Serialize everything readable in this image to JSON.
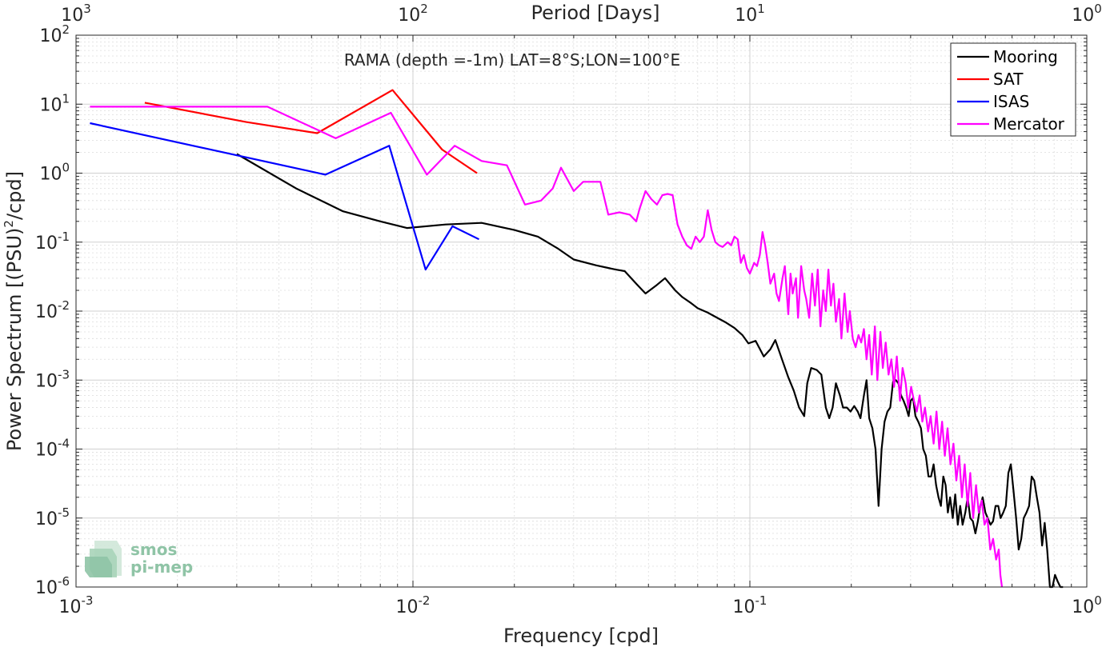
{
  "chart_data": {
    "type": "line",
    "title": "",
    "annotation": "RAMA (depth =-1m) LAT=8°S;LON=100°E",
    "xlabel": "Frequency [cpd]",
    "ylabel": "Power Spectrum [(PSU)",
    "ylabel_sup": "2",
    "ylabel_tail": "/cpd]",
    "top_xlabel": "Period [Days]",
    "xscale": "log",
    "yscale": "log",
    "xlim": [
      0.001,
      1
    ],
    "ylim": [
      1e-06,
      100
    ],
    "grid": true,
    "legend_position": "top-right",
    "x_ticks": [
      {
        "value": 0.001,
        "base": "10",
        "exp": "-3"
      },
      {
        "value": 0.01,
        "base": "10",
        "exp": "-2"
      },
      {
        "value": 0.1,
        "base": "10",
        "exp": "-1"
      },
      {
        "value": 1,
        "base": "10",
        "exp": "0"
      }
    ],
    "top_ticks": [
      {
        "value": 0.001,
        "base": "10",
        "exp": "3"
      },
      {
        "value": 0.01,
        "base": "10",
        "exp": "2"
      },
      {
        "value": 0.1,
        "base": "10",
        "exp": "1"
      },
      {
        "value": 1,
        "base": "10",
        "exp": "0"
      }
    ],
    "y_ticks": [
      {
        "value": 100,
        "base": "10",
        "exp": "2"
      },
      {
        "value": 10,
        "base": "10",
        "exp": "1"
      },
      {
        "value": 1,
        "base": "10",
        "exp": "0"
      },
      {
        "value": 0.1,
        "base": "10",
        "exp": "-1"
      },
      {
        "value": 0.01,
        "base": "10",
        "exp": "-2"
      },
      {
        "value": 0.001,
        "base": "10",
        "exp": "-3"
      },
      {
        "value": 0.0001,
        "base": "10",
        "exp": "-4"
      },
      {
        "value": 1e-05,
        "base": "10",
        "exp": "-5"
      },
      {
        "value": 1e-06,
        "base": "10",
        "exp": "-6"
      }
    ],
    "series": [
      {
        "name": "Mooring",
        "color": "#000000",
        "points": [
          [
            0.003,
            1.9
          ],
          [
            0.0045,
            0.6
          ],
          [
            0.0062,
            0.28
          ],
          [
            0.008,
            0.2
          ],
          [
            0.0096,
            0.16
          ],
          [
            0.0125,
            0.18
          ],
          [
            0.016,
            0.19
          ],
          [
            0.02,
            0.15
          ],
          [
            0.0235,
            0.12
          ],
          [
            0.027,
            0.08
          ],
          [
            0.03,
            0.056
          ],
          [
            0.035,
            0.046
          ],
          [
            0.04,
            0.04
          ],
          [
            0.0425,
            0.038
          ],
          [
            0.046,
            0.025
          ],
          [
            0.049,
            0.018
          ],
          [
            0.053,
            0.024
          ],
          [
            0.056,
            0.03
          ],
          [
            0.06,
            0.02
          ],
          [
            0.063,
            0.016
          ],
          [
            0.067,
            0.013
          ],
          [
            0.07,
            0.011
          ],
          [
            0.075,
            0.0095
          ],
          [
            0.08,
            0.008
          ],
          [
            0.085,
            0.0068
          ],
          [
            0.09,
            0.0057
          ],
          [
            0.095,
            0.0045
          ],
          [
            0.099,
            0.0034
          ],
          [
            0.104,
            0.0037
          ],
          [
            0.11,
            0.0022
          ],
          [
            0.115,
            0.0028
          ],
          [
            0.119,
            0.0038
          ],
          [
            0.125,
            0.0019
          ],
          [
            0.13,
            0.0011
          ],
          [
            0.135,
            0.0007
          ],
          [
            0.14,
            0.0004
          ],
          [
            0.145,
            0.0003
          ],
          [
            0.148,
            0.0009
          ],
          [
            0.152,
            0.0015
          ],
          [
            0.158,
            0.0014
          ],
          [
            0.163,
            0.0012
          ],
          [
            0.168,
            0.0004
          ],
          [
            0.172,
            0.00028
          ],
          [
            0.176,
            0.0004
          ],
          [
            0.18,
            0.0009
          ],
          [
            0.185,
            0.0006
          ],
          [
            0.189,
            0.0004
          ],
          [
            0.194,
            0.0004
          ],
          [
            0.199,
            0.00035
          ],
          [
            0.204,
            0.00042
          ],
          [
            0.209,
            0.00035
          ],
          [
            0.213,
            0.00028
          ],
          [
            0.218,
            0.0006
          ],
          [
            0.222,
            0.001
          ],
          [
            0.226,
            0.00028
          ],
          [
            0.231,
            0.0002
          ],
          [
            0.236,
            0.0001
          ],
          [
            0.241,
            1.5e-05
          ],
          [
            0.246,
            0.0001
          ],
          [
            0.251,
            0.00025
          ],
          [
            0.256,
            0.00035
          ],
          [
            0.261,
            0.0004
          ],
          [
            0.266,
            0.00095
          ],
          [
            0.271,
            0.001
          ],
          [
            0.276,
            0.0009
          ],
          [
            0.281,
            0.0006
          ],
          [
            0.286,
            0.0005
          ],
          [
            0.291,
            0.0004
          ],
          [
            0.296,
            0.0003
          ],
          [
            0.3,
            0.0005
          ],
          [
            0.305,
            0.00055
          ],
          [
            0.31,
            0.0003
          ],
          [
            0.316,
            0.00025
          ],
          [
            0.322,
            0.0002
          ],
          [
            0.327,
            0.0001
          ],
          [
            0.333,
            8e-05
          ],
          [
            0.339,
            4e-05
          ],
          [
            0.345,
            4e-05
          ],
          [
            0.351,
            6e-05
          ],
          [
            0.357,
            3e-05
          ],
          [
            0.363,
            2e-05
          ],
          [
            0.369,
            1.5e-05
          ],
          [
            0.375,
            4e-05
          ],
          [
            0.381,
            3e-05
          ],
          [
            0.387,
            1.2e-05
          ],
          [
            0.393,
            2e-05
          ],
          [
            0.4,
            1e-05
          ],
          [
            0.407,
            2.2e-05
          ],
          [
            0.414,
            8e-06
          ],
          [
            0.421,
            1.5e-05
          ],
          [
            0.428,
            8e-06
          ],
          [
            0.436,
            1.2e-05
          ],
          [
            0.443,
            2e-05
          ],
          [
            0.451,
            1e-05
          ],
          [
            0.459,
            9e-06
          ],
          [
            0.467,
            6e-06
          ],
          [
            0.475,
            9e-06
          ],
          [
            0.483,
            1.5e-05
          ],
          [
            0.491,
            2e-05
          ],
          [
            0.5,
            1.2e-05
          ],
          [
            0.508,
            1e-05
          ],
          [
            0.518,
            8e-06
          ],
          [
            0.527,
            9e-06
          ],
          [
            0.536,
            1.5e-05
          ],
          [
            0.546,
            1.5e-05
          ],
          [
            0.555,
            1e-05
          ],
          [
            0.565,
            1.2e-05
          ],
          [
            0.575,
            1.5e-05
          ],
          [
            0.585,
            4.5e-05
          ],
          [
            0.595,
            6e-05
          ],
          [
            0.606,
            2.5e-05
          ],
          [
            0.617,
            1e-05
          ],
          [
            0.628,
            3.5e-06
          ],
          [
            0.639,
            5e-06
          ],
          [
            0.65,
            1e-05
          ],
          [
            0.662,
            1.2e-05
          ],
          [
            0.674,
            1.5e-05
          ],
          [
            0.686,
            4e-05
          ],
          [
            0.698,
            3.5e-05
          ],
          [
            0.711,
            2e-05
          ],
          [
            0.724,
            1.2e-05
          ],
          [
            0.737,
            4e-06
          ],
          [
            0.75,
            8.5e-06
          ],
          [
            0.763,
            3.5e-06
          ],
          [
            0.777,
            1e-06
          ],
          [
            0.791,
            1e-06
          ],
          [
            0.805,
            1.5e-06
          ],
          [
            0.82,
            1.2e-06
          ],
          [
            0.835,
            1e-06
          ],
          [
            0.85,
            1e-06
          ]
        ]
      },
      {
        "name": "SAT",
        "color": "#ff0000",
        "points": [
          [
            0.0016,
            10.5
          ],
          [
            0.0032,
            5.5
          ],
          [
            0.0052,
            3.8
          ],
          [
            0.0087,
            16
          ],
          [
            0.0122,
            2.2
          ],
          [
            0.0155,
            1.0
          ]
        ]
      },
      {
        "name": "ISAS",
        "color": "#0000ff",
        "points": [
          [
            0.0011,
            5.3
          ],
          [
            0.0055,
            0.95
          ],
          [
            0.0085,
            2.5
          ],
          [
            0.0109,
            0.04
          ],
          [
            0.0131,
            0.17
          ],
          [
            0.0157,
            0.11
          ]
        ]
      },
      {
        "name": "Mercator",
        "color": "#ff00ff",
        "points": [
          [
            0.0011,
            9.2
          ],
          [
            0.0037,
            9.2
          ],
          [
            0.0059,
            3.2
          ],
          [
            0.0086,
            7.5
          ],
          [
            0.011,
            0.95
          ],
          [
            0.0133,
            2.5
          ],
          [
            0.016,
            1.5
          ],
          [
            0.019,
            1.3
          ],
          [
            0.0215,
            0.35
          ],
          [
            0.024,
            0.4
          ],
          [
            0.026,
            0.6
          ],
          [
            0.0275,
            1.2
          ],
          [
            0.03,
            0.55
          ],
          [
            0.032,
            0.75
          ],
          [
            0.034,
            0.75
          ],
          [
            0.036,
            0.75
          ],
          [
            0.038,
            0.25
          ],
          [
            0.041,
            0.27
          ],
          [
            0.044,
            0.25
          ],
          [
            0.046,
            0.2
          ],
          [
            0.047,
            0.3
          ],
          [
            0.049,
            0.55
          ],
          [
            0.051,
            0.42
          ],
          [
            0.053,
            0.35
          ],
          [
            0.055,
            0.48
          ],
          [
            0.057,
            0.5
          ],
          [
            0.059,
            0.48
          ],
          [
            0.061,
            0.18
          ],
          [
            0.063,
            0.12
          ],
          [
            0.065,
            0.09
          ],
          [
            0.067,
            0.08
          ],
          [
            0.069,
            0.12
          ],
          [
            0.071,
            0.1
          ],
          [
            0.073,
            0.12
          ],
          [
            0.075,
            0.29
          ],
          [
            0.077,
            0.15
          ],
          [
            0.079,
            0.1
          ],
          [
            0.081,
            0.09
          ],
          [
            0.083,
            0.085
          ],
          [
            0.086,
            0.1
          ],
          [
            0.088,
            0.09
          ],
          [
            0.09,
            0.12
          ],
          [
            0.092,
            0.11
          ],
          [
            0.094,
            0.05
          ],
          [
            0.096,
            0.065
          ],
          [
            0.098,
            0.042
          ],
          [
            0.1,
            0.035
          ],
          [
            0.103,
            0.05
          ],
          [
            0.105,
            0.045
          ],
          [
            0.107,
            0.065
          ],
          [
            0.109,
            0.14
          ],
          [
            0.111,
            0.09
          ],
          [
            0.113,
            0.05
          ],
          [
            0.115,
            0.025
          ],
          [
            0.118,
            0.035
          ],
          [
            0.12,
            0.018
          ],
          [
            0.122,
            0.014
          ],
          [
            0.125,
            0.03
          ],
          [
            0.127,
            0.045
          ],
          [
            0.13,
            0.009
          ],
          [
            0.132,
            0.035
          ],
          [
            0.134,
            0.018
          ],
          [
            0.137,
            0.03
          ],
          [
            0.139,
            0.008
          ],
          [
            0.142,
            0.045
          ],
          [
            0.145,
            0.02
          ],
          [
            0.147,
            0.015
          ],
          [
            0.15,
            0.008
          ],
          [
            0.153,
            0.035
          ],
          [
            0.156,
            0.012
          ],
          [
            0.159,
            0.04
          ],
          [
            0.162,
            0.006
          ],
          [
            0.165,
            0.02
          ],
          [
            0.168,
            0.01
          ],
          [
            0.171,
            0.04
          ],
          [
            0.174,
            0.012
          ],
          [
            0.177,
            0.025
          ],
          [
            0.18,
            0.007
          ],
          [
            0.184,
            0.015
          ],
          [
            0.187,
            0.004
          ],
          [
            0.191,
            0.018
          ],
          [
            0.195,
            0.005
          ],
          [
            0.198,
            0.01
          ],
          [
            0.202,
            0.004
          ],
          [
            0.206,
            0.003
          ],
          [
            0.21,
            0.0045
          ],
          [
            0.214,
            0.0035
          ],
          [
            0.218,
            0.0055
          ],
          [
            0.222,
            0.002
          ],
          [
            0.226,
            0.0045
          ],
          [
            0.23,
            0.0012
          ],
          [
            0.235,
            0.006
          ],
          [
            0.239,
            0.001
          ],
          [
            0.244,
            0.005
          ],
          [
            0.248,
            0.0015
          ],
          [
            0.253,
            0.0035
          ],
          [
            0.258,
            0.0012
          ],
          [
            0.263,
            0.002
          ],
          [
            0.268,
            0.0008
          ],
          [
            0.273,
            0.0022
          ],
          [
            0.279,
            0.0005
          ],
          [
            0.284,
            0.0015
          ],
          [
            0.29,
            0.0009
          ],
          [
            0.295,
            0.0004
          ],
          [
            0.301,
            0.0008
          ],
          [
            0.307,
            0.0005
          ],
          [
            0.313,
            0.00035
          ],
          [
            0.319,
            0.0006
          ],
          [
            0.325,
            0.00025
          ],
          [
            0.331,
            0.0004
          ],
          [
            0.338,
            0.00018
          ],
          [
            0.344,
            0.0003
          ],
          [
            0.351,
            0.00012
          ],
          [
            0.358,
            0.00035
          ],
          [
            0.365,
            0.0001
          ],
          [
            0.372,
            0.00025
          ],
          [
            0.379,
            8e-05
          ],
          [
            0.386,
            0.0002
          ],
          [
            0.394,
            6e-05
          ],
          [
            0.402,
            0.00012
          ],
          [
            0.41,
            3.5e-05
          ],
          [
            0.418,
            8e-05
          ],
          [
            0.426,
            2e-05
          ],
          [
            0.434,
            6e-05
          ],
          [
            0.443,
            1.5e-05
          ],
          [
            0.451,
            4.5e-05
          ],
          [
            0.46,
            1e-05
          ],
          [
            0.469,
            3e-05
          ],
          [
            0.478,
            1.2e-05
          ],
          [
            0.488,
            1.8e-05
          ],
          [
            0.497,
            8e-06
          ],
          [
            0.507,
            1e-05
          ],
          [
            0.517,
            3.5e-06
          ],
          [
            0.527,
            5e-06
          ],
          [
            0.538,
            2.5e-06
          ],
          [
            0.548,
            3.5e-06
          ],
          [
            0.554,
            1.5e-06
          ],
          [
            0.56,
            1e-06
          ]
        ]
      }
    ]
  },
  "logo": {
    "line1": "smos",
    "line2": "pi-mep"
  }
}
